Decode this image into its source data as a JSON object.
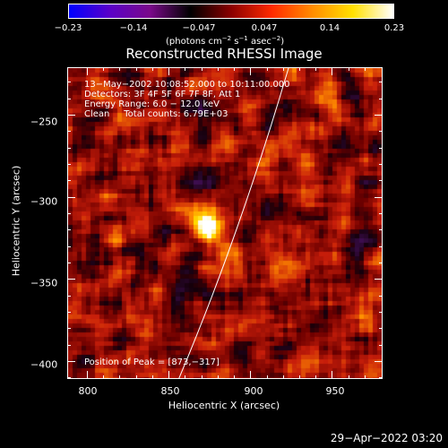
{
  "colorbar": {
    "ticks": [
      "−0.23",
      "−0.14",
      "−0.047",
      "0.047",
      "0.14",
      "0.23"
    ],
    "units_text": "(photons cm",
    "units_exp1": "−2",
    "units_mid": " s",
    "units_exp2": "−1",
    "units_mid2": " asec",
    "units_exp3": "−2",
    "units_end": ")",
    "colors": [
      "#0000ff",
      "#5a00c8",
      "#7a0a8a",
      "#000000",
      "#8b0000",
      "#ff2a00",
      "#ff8c00",
      "#ffe000",
      "#ffffff"
    ]
  },
  "title": "Reconstructed RHESSI Image",
  "annotations": {
    "line1": "13−May−2002 10:08:52.000 to 10:11:00.000",
    "line2": "Detectors: 3F 4F 5F 6F 7F 8F, Att 1",
    "line3": "Energy Range: 6.0 − 12.0 keV",
    "line4": "Clean     Total counts: 6.79E+03",
    "peak": "Position of Peak = [873,−317]"
  },
  "axes": {
    "x_ticks": [
      "800",
      "850",
      "900",
      "950"
    ],
    "y_ticks": [
      "−250",
      "−300",
      "−350",
      "−400"
    ],
    "xlabel": "Heliocentric X (arcsec)",
    "ylabel": "Heliocentric Y (arcsec)",
    "xlim": [
      788,
      981
    ],
    "ylim": [
      -411,
      -221
    ]
  },
  "chart_data": {
    "type": "heatmap",
    "title": "Reconstructed RHESSI Image",
    "xlabel": "Heliocentric X (arcsec)",
    "ylabel": "Heliocentric Y (arcsec)",
    "xlim": [
      788,
      981
    ],
    "ylim": [
      -411,
      -221
    ],
    "peak": [
      873,
      -317
    ],
    "value_range": [
      -0.23,
      0.23
    ]
  },
  "timestamp": "29−Apr−2022 03:20"
}
